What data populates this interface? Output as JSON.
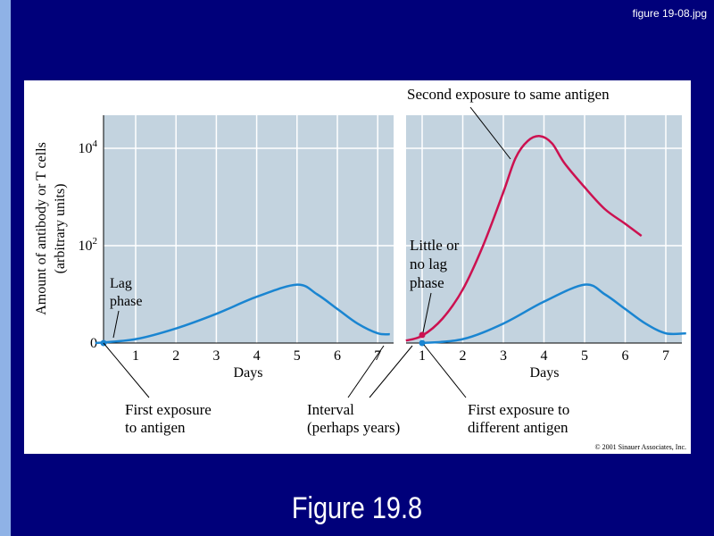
{
  "window": {
    "filename": "figure 19-08.jpg"
  },
  "figure_title": "Figure 19.8",
  "copyright": "© 2001 Sinauer Associates, Inc.",
  "colors": {
    "background": "#00007a",
    "plot_bg": "#c3d3df",
    "primary_curve": "#1a85d1",
    "secondary_curve": "#cc1150",
    "grid": "#ffffff"
  },
  "chart_data": [
    {
      "type": "line",
      "title": "",
      "xlabel": "Days",
      "ylabel": "Amount of antibody or T cells (arbitrary units)",
      "ylabel_lines": [
        "Amount of antibody or T cells",
        "(arbitrary units)"
      ],
      "y_scale": "log",
      "xlim": [
        0,
        7.5
      ],
      "x_ticks": [
        "1",
        "2",
        "3",
        "4",
        "5",
        "6",
        "7"
      ],
      "y_ticks": [
        {
          "value": 0,
          "label": "0"
        },
        {
          "value": 2,
          "label": "10",
          "sup": "2"
        },
        {
          "value": 4,
          "label": "10",
          "sup": "4"
        }
      ],
      "grid": true,
      "series": [
        {
          "role": "primary",
          "x": [
            0,
            1,
            2,
            3,
            4,
            5,
            5.5,
            6,
            6.5,
            7,
            7.3
          ],
          "y": [
            0,
            0.08,
            0.3,
            0.6,
            0.95,
            1.2,
            1.0,
            0.7,
            0.4,
            0.2,
            0.18
          ]
        }
      ],
      "annotations": {
        "lag_phase": [
          "Lag",
          "phase"
        ],
        "first_exposure": [
          "First exposure",
          "to antigen"
        ],
        "interval": [
          "Interval",
          "(perhaps years)"
        ]
      }
    },
    {
      "type": "line",
      "xlabel": "Days",
      "y_scale": "log",
      "xlim": [
        0.6,
        7.5
      ],
      "x_ticks": [
        "1",
        "2",
        "3",
        "4",
        "5",
        "6",
        "7"
      ],
      "grid": true,
      "series": [
        {
          "role": "secondary",
          "x": [
            0.6,
            1,
            1.5,
            2,
            2.5,
            3,
            3.3,
            3.6,
            3.9,
            4.2,
            4.5,
            5,
            5.5,
            6,
            6.4
          ],
          "y": [
            0.05,
            0.15,
            0.5,
            1.1,
            2.0,
            3.1,
            3.8,
            4.15,
            4.25,
            4.1,
            3.7,
            3.2,
            2.75,
            2.45,
            2.2
          ]
        },
        {
          "role": "primary",
          "x": [
            1,
            2,
            3,
            4,
            5,
            5.5,
            6,
            6.5,
            7,
            7.5
          ],
          "y": [
            0,
            0.08,
            0.4,
            0.85,
            1.2,
            1.0,
            0.7,
            0.4,
            0.2,
            0.2
          ]
        }
      ],
      "annotations": {
        "second_exposure": "Second exposure to same antigen",
        "little_lag": [
          "Little or",
          "no lag",
          "phase"
        ],
        "first_exposure_diff": [
          "First exposure to",
          "different antigen"
        ]
      }
    }
  ]
}
